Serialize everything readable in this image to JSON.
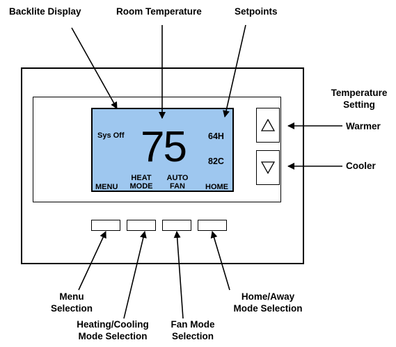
{
  "callouts": {
    "backlite_display": "Backlite Display",
    "room_temperature": "Room Temperature",
    "setpoints": "Setpoints",
    "temperature_setting_1": "Temperature",
    "temperature_setting_2": "Setting",
    "warmer": "Warmer",
    "cooler": "Cooler",
    "menu_selection_1": "Menu",
    "menu_selection_2": "Selection",
    "heating_cooling_1": "Heating/Cooling",
    "heating_cooling_2": "Mode Selection",
    "fan_mode_1": "Fan Mode",
    "fan_mode_2": "Selection",
    "home_away_1": "Home/Away",
    "home_away_2": "Mode Selection"
  },
  "display": {
    "system_status": "Sys Off",
    "room_temp": "75",
    "heat_setpoint": "64H",
    "cool_setpoint": "82C",
    "soft_labels": {
      "menu": "MENU",
      "heat_1": "HEAT",
      "heat_2": "MODE",
      "fan_1": "AUTO",
      "fan_2": "FAN",
      "home": "HOME"
    },
    "backlight_color": "#9ec7ef"
  },
  "icons": {
    "up": "triangle-up-icon",
    "down": "triangle-down-icon"
  }
}
